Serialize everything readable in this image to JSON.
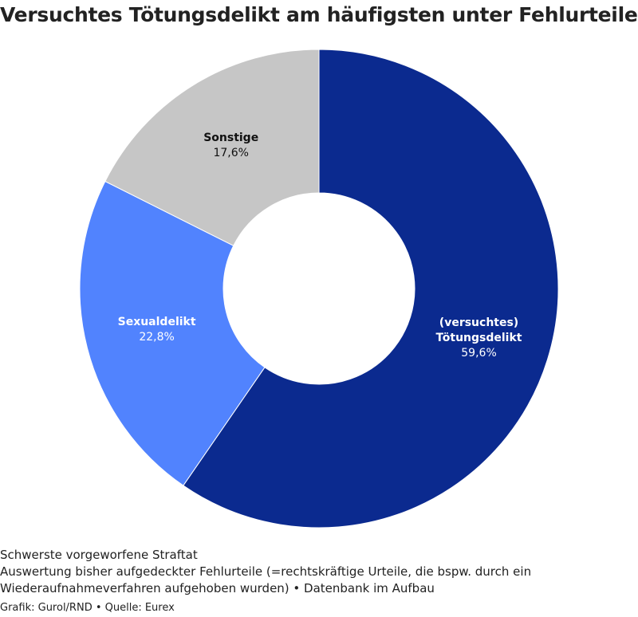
{
  "chart_data": {
    "type": "donut",
    "title": "Versuchtes Tötungsdelikt am häufigsten unter Fehlurteilen",
    "categories": [
      "(versuchtes) Tötungsdelikt",
      "Sexualdelikt",
      "Sonstige"
    ],
    "values": [
      59.6,
      22.8,
      17.6
    ],
    "value_labels": [
      "59,6%",
      "22,8%",
      "17,6%"
    ],
    "colors": [
      "#0b2a8f",
      "#5183fe",
      "#c6c6c6"
    ],
    "subtitle": "Schwerste vorgeworfene Straftat",
    "description": "Auswertung bisher aufgedeckter Fehlurteile (=rechtskräftige Urteile, die bspw. durch ein Wiederaufnahmeverfahren aufgehoben wurden) • Datenbank im Aufbau",
    "credit": "Grafik: Gurol/RND • Quelle: Eurex"
  }
}
